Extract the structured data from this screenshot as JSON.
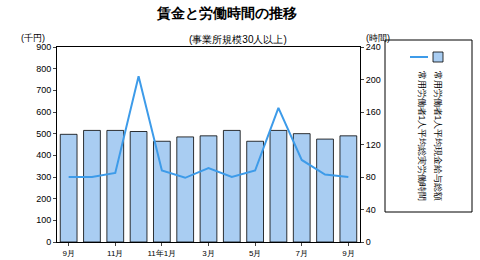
{
  "chart_data": {
    "type": "bar",
    "title": "賃金と労働時間の推移",
    "subtitle": "(事業所規模30人以上)",
    "ylabel": "(千円)",
    "y2label": "(時間)",
    "categories": [
      "9月",
      null,
      "11月",
      null,
      "11年1月",
      null,
      "3月",
      null,
      "5月",
      null,
      "7月",
      null,
      "9月"
    ],
    "series": [
      {
        "name": "常用労働者1人平均現金給与総額",
        "type": "bar",
        "color": "#a9cdf2",
        "values": [
          497,
          515,
          515,
          510,
          465,
          485,
          490,
          515,
          465,
          515,
          500,
          475,
          490
        ]
      },
      {
        "name": "常用労働者1人平均総実労働時間",
        "type": "line",
        "axis": "y2",
        "color": "#3d9be9",
        "values": [
          80,
          80,
          85,
          204,
          88,
          79,
          91,
          80,
          88,
          165,
          101,
          83,
          80
        ]
      }
    ],
    "ylim": [
      0,
      900
    ],
    "yticks": [
      0,
      100,
      200,
      300,
      400,
      500,
      600,
      700,
      800,
      900
    ],
    "y2lim": [
      0,
      240
    ],
    "y2ticks": [
      0,
      40,
      80,
      120,
      160,
      200,
      240
    ],
    "grid": false,
    "legend": "right"
  }
}
